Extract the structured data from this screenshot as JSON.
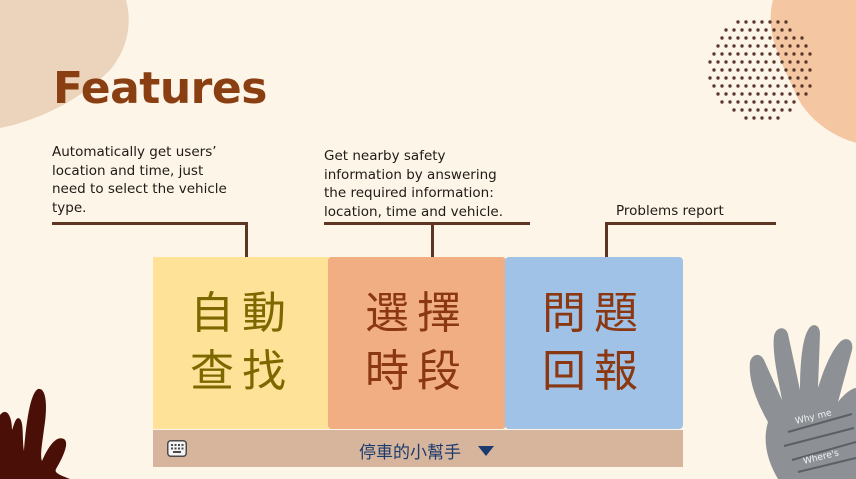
{
  "title": "Features",
  "features": [
    {
      "description": "Automatically get users’\nlocation and time, just\nneed to select the vehicle\ntype.",
      "button": "自動\n查找",
      "color": "#fde298"
    },
    {
      "description": "Get nearby safety\ninformation  by answering\nthe required information:\nlocation, time and vehicle.",
      "button": "選擇\n時段",
      "color": "#f1ae82"
    },
    {
      "description": "Problems report",
      "button": "問題\n回報",
      "color": "#9fc2e6"
    }
  ],
  "ime_bar": {
    "label": "停車的小幫手",
    "keyboard_icon": "keyboard-icon",
    "dropdown_icon": "triangle-down-icon"
  },
  "colors": {
    "background": "#fdf5e8",
    "title": "#8a3f12",
    "connector": "#5e3423",
    "ime_bar": "#d6b59c"
  }
}
